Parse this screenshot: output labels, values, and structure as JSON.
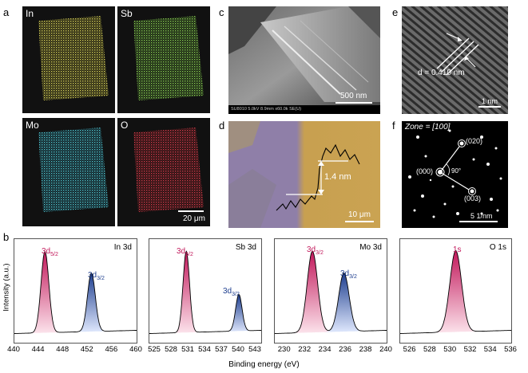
{
  "panel_labels": {
    "a": "a",
    "b": "b",
    "c": "c",
    "d": "d",
    "e": "e",
    "f": "f"
  },
  "eds": {
    "maps": [
      {
        "label": "In",
        "color": "#d8d05a"
      },
      {
        "label": "Sb",
        "color": "#8ccd55"
      },
      {
        "label": "Mo",
        "color": "#4fc6cf"
      },
      {
        "label": "O",
        "color": "#d23c4a"
      }
    ],
    "scale": "20 μm"
  },
  "sem": {
    "scale": "500 nm",
    "info": "SU8010 5.0kV 8.9mm x60.0k SE(U)"
  },
  "afm": {
    "height": "1.4 nm",
    "scale": "10 μm"
  },
  "hrtem": {
    "spacing": "d = 0.410 nm",
    "scale": "1 nm"
  },
  "saed": {
    "zone": "Zone = [100]",
    "spot1": "(020)",
    "spot0": "(000)",
    "spot2": "(003)",
    "angle": "90°",
    "scale": "5 1/nm"
  },
  "xps": {
    "ylabel": "Intensity (a.u.)",
    "xlabel": "Binding energy (eV)",
    "panels": [
      {
        "element": "In 3d",
        "ticks": [
          "440",
          "444",
          "448",
          "452",
          "456",
          "460"
        ],
        "peak1": "3d",
        "peak1_sub": "5/2",
        "peak2": "3d",
        "peak2_sub": "3/2"
      },
      {
        "element": "Sb 3d",
        "ticks": [
          "525",
          "528",
          "531",
          "534",
          "537",
          "540",
          "543"
        ],
        "peak1": "3d",
        "peak1_sub": "5/2",
        "peak2": "3d",
        "peak2_sub": "3/2"
      },
      {
        "element": "Mo 3d",
        "ticks": [
          "230",
          "232",
          "234",
          "236",
          "238",
          "240"
        ],
        "peak1": "3d",
        "peak1_sub": "5/2",
        "peak2": "3d",
        "peak2_sub": "3/2"
      },
      {
        "element": "O 1s",
        "ticks": [
          "526",
          "528",
          "530",
          "532",
          "534",
          "536"
        ],
        "peak1": "1s"
      }
    ]
  },
  "chart_data": [
    {
      "type": "line",
      "title": "In 3d",
      "xlabel": "Binding energy (eV)",
      "ylabel": "Intensity (a.u.)",
      "xlim": [
        440,
        460
      ],
      "peaks": [
        {
          "name": "3d5/2",
          "x": 445.0,
          "rel_intensity": 1.0
        },
        {
          "name": "3d3/2",
          "x": 452.6,
          "rel_intensity": 0.72
        }
      ]
    },
    {
      "type": "line",
      "title": "Sb 3d",
      "xlabel": "Binding energy (eV)",
      "ylabel": "Intensity (a.u.)",
      "xlim": [
        524,
        544
      ],
      "peaks": [
        {
          "name": "3d5/2",
          "x": 530.6,
          "rel_intensity": 1.0
        },
        {
          "name": "3d3/2",
          "x": 540.0,
          "rel_intensity": 0.45
        }
      ]
    },
    {
      "type": "line",
      "title": "Mo 3d",
      "xlabel": "Binding energy (eV)",
      "ylabel": "Intensity (a.u.)",
      "xlim": [
        229,
        240
      ],
      "peaks": [
        {
          "name": "3d5/2",
          "x": 232.7,
          "rel_intensity": 1.0
        },
        {
          "name": "3d3/2",
          "x": 235.8,
          "rel_intensity": 0.72
        }
      ]
    },
    {
      "type": "line",
      "title": "O 1s",
      "xlabel": "Binding energy (eV)",
      "ylabel": "Intensity (a.u.)",
      "xlim": [
        525,
        536
      ],
      "peaks": [
        {
          "name": "1s",
          "x": 530.5,
          "rel_intensity": 1.0
        }
      ]
    }
  ]
}
